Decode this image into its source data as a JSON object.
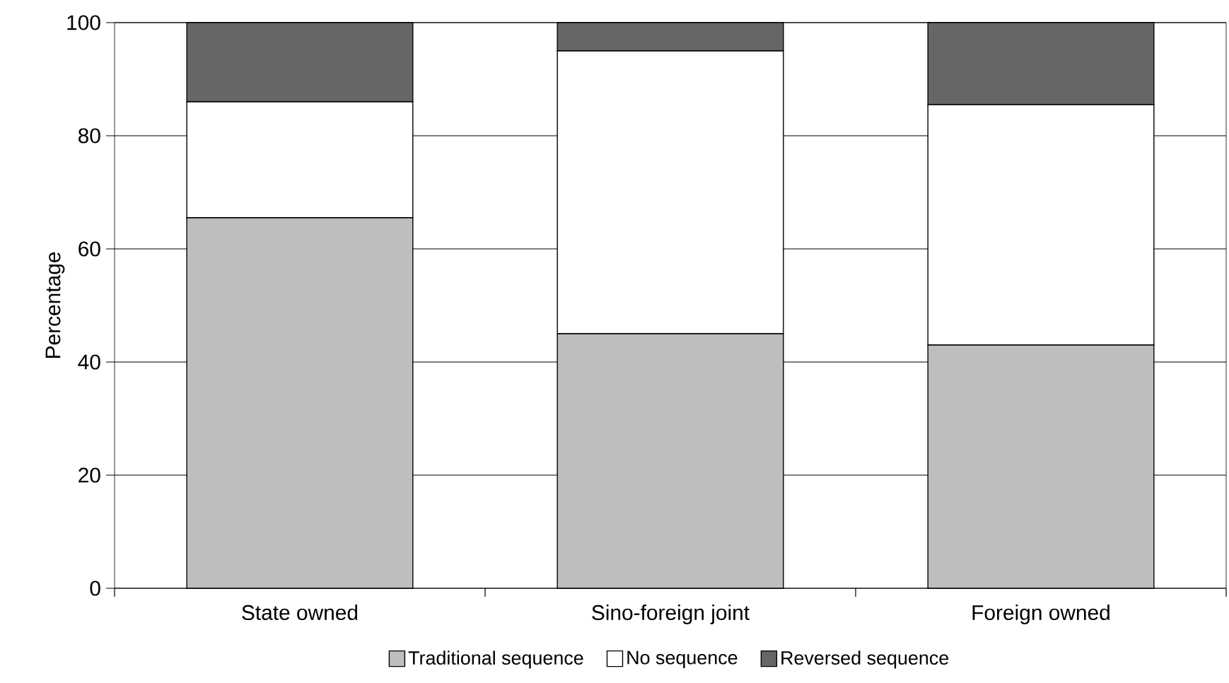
{
  "chart_data": {
    "type": "bar",
    "stacked": true,
    "ylabel": "Percentage",
    "categories": [
      "State owned",
      "Sino-foreign joint",
      "Foreign owned"
    ],
    "series": [
      {
        "name": "Traditional sequence",
        "color": "#bebebe",
        "values": [
          65.5,
          45,
          43
        ]
      },
      {
        "name": "No sequence",
        "color": "#ffffff",
        "values": [
          20.5,
          50,
          42.5
        ]
      },
      {
        "name": "Reversed sequence",
        "color": "#666666",
        "values": [
          14,
          5,
          14.5
        ]
      }
    ],
    "ylim": [
      0,
      100
    ],
    "yticks": [
      0,
      20,
      40,
      60,
      80,
      100
    ],
    "grid": "y",
    "legend": "bottom"
  }
}
